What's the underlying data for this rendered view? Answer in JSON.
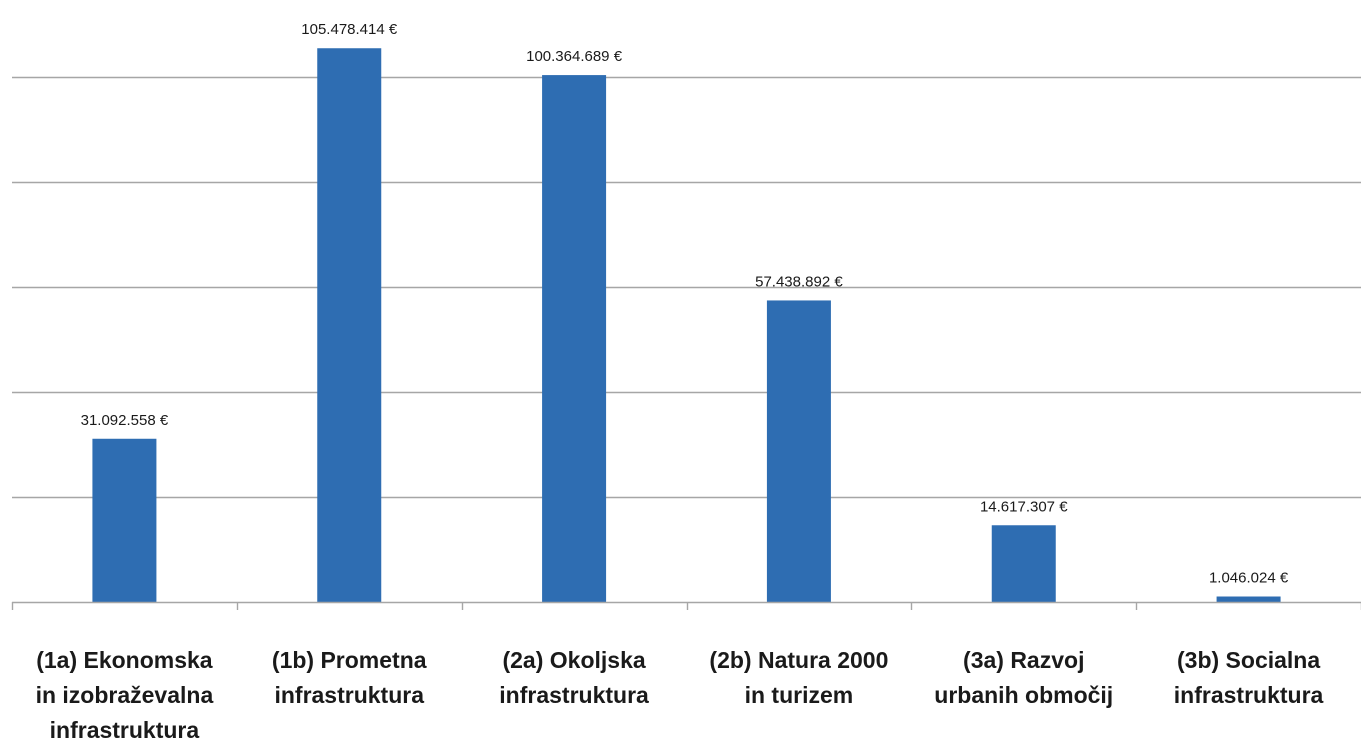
{
  "chart_data": {
    "type": "bar",
    "title": "",
    "xlabel": "",
    "ylabel": "",
    "categories": [
      [
        "(1a) Ekonomska",
        "in izobraževalna",
        "infrastruktura"
      ],
      [
        "(1b) Prometna",
        "infrastruktura"
      ],
      [
        "(2a) Okoljska",
        "infrastruktura"
      ],
      [
        "(2b) Natura 2000",
        "in turizem"
      ],
      [
        "(3a) Razvoj",
        "urbanih območij"
      ],
      [
        "(3b) Socialna",
        "infrastruktura"
      ]
    ],
    "values": [
      31092558,
      105478414,
      100364689,
      57438892,
      14617307,
      1046024
    ],
    "data_labels": [
      "31.092.558 €",
      "105.478.414 €",
      "100.364.689 €",
      "57.438.892 €",
      "14.617.307 €",
      "1.046.024 €"
    ],
    "ylim": [
      0,
      120000000
    ],
    "gridlines": [
      20000000,
      40000000,
      60000000,
      80000000,
      100000000,
      120000000
    ],
    "grid": true,
    "legend": false,
    "colors": {
      "bar": "#2e6db2",
      "grid": "#a6a6a6",
      "axis": "#a6a6a6"
    }
  }
}
